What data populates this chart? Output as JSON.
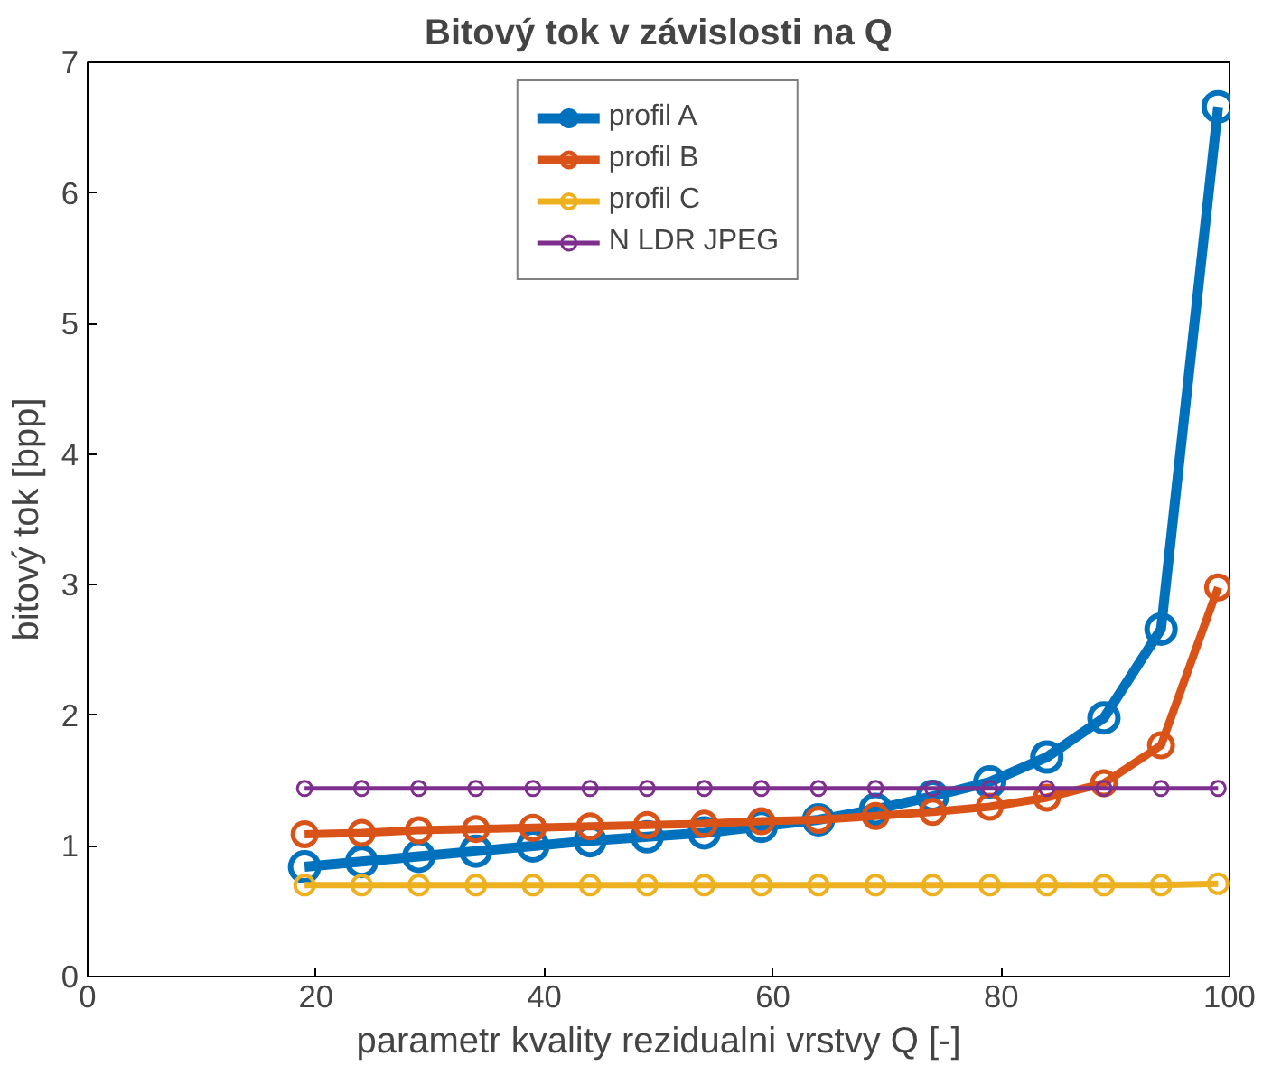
{
  "chart_data": {
    "type": "line",
    "title": "Bitový tok v závislosti na Q",
    "xlabel": "parametr kvality rezidualni vrstvy Q [-]",
    "ylabel": "bitový tok [bpp]",
    "x": [
      19,
      24,
      29,
      34,
      39,
      44,
      49,
      54,
      59,
      64,
      69,
      74,
      79,
      84,
      89,
      94,
      99
    ],
    "xlim": [
      0,
      100
    ],
    "xticks": [
      0,
      20,
      40,
      60,
      80,
      100
    ],
    "ylim": [
      0,
      7
    ],
    "yticks": [
      0,
      1,
      2,
      3,
      4,
      5,
      6,
      7
    ],
    "grid": false,
    "legend": "top",
    "marker": "circle",
    "line_style": "solid",
    "series": [
      {
        "name": "profil A",
        "color": "#0072bd",
        "values": [
          0.84,
          0.88,
          0.92,
          0.96,
          1.0,
          1.04,
          1.07,
          1.1,
          1.15,
          1.2,
          1.28,
          1.38,
          1.49,
          1.68,
          1.98,
          2.66,
          6.66
        ]
      },
      {
        "name": "profil B",
        "color": "#d95319",
        "values": [
          1.09,
          1.1,
          1.12,
          1.13,
          1.14,
          1.15,
          1.16,
          1.17,
          1.19,
          1.2,
          1.23,
          1.26,
          1.3,
          1.37,
          1.48,
          1.77,
          2.98
        ]
      },
      {
        "name": "profil C",
        "color": "#edb120",
        "values": [
          0.7,
          0.7,
          0.7,
          0.7,
          0.7,
          0.7,
          0.7,
          0.7,
          0.7,
          0.7,
          0.7,
          0.7,
          0.7,
          0.7,
          0.7,
          0.7,
          0.71
        ]
      },
      {
        "name": "N LDR JPEG",
        "color": "#7e2f8e",
        "values": [
          1.44,
          1.44,
          1.44,
          1.44,
          1.44,
          1.44,
          1.44,
          1.44,
          1.44,
          1.44,
          1.44,
          1.44,
          1.44,
          1.44,
          1.44,
          1.44,
          1.44
        ]
      }
    ]
  }
}
